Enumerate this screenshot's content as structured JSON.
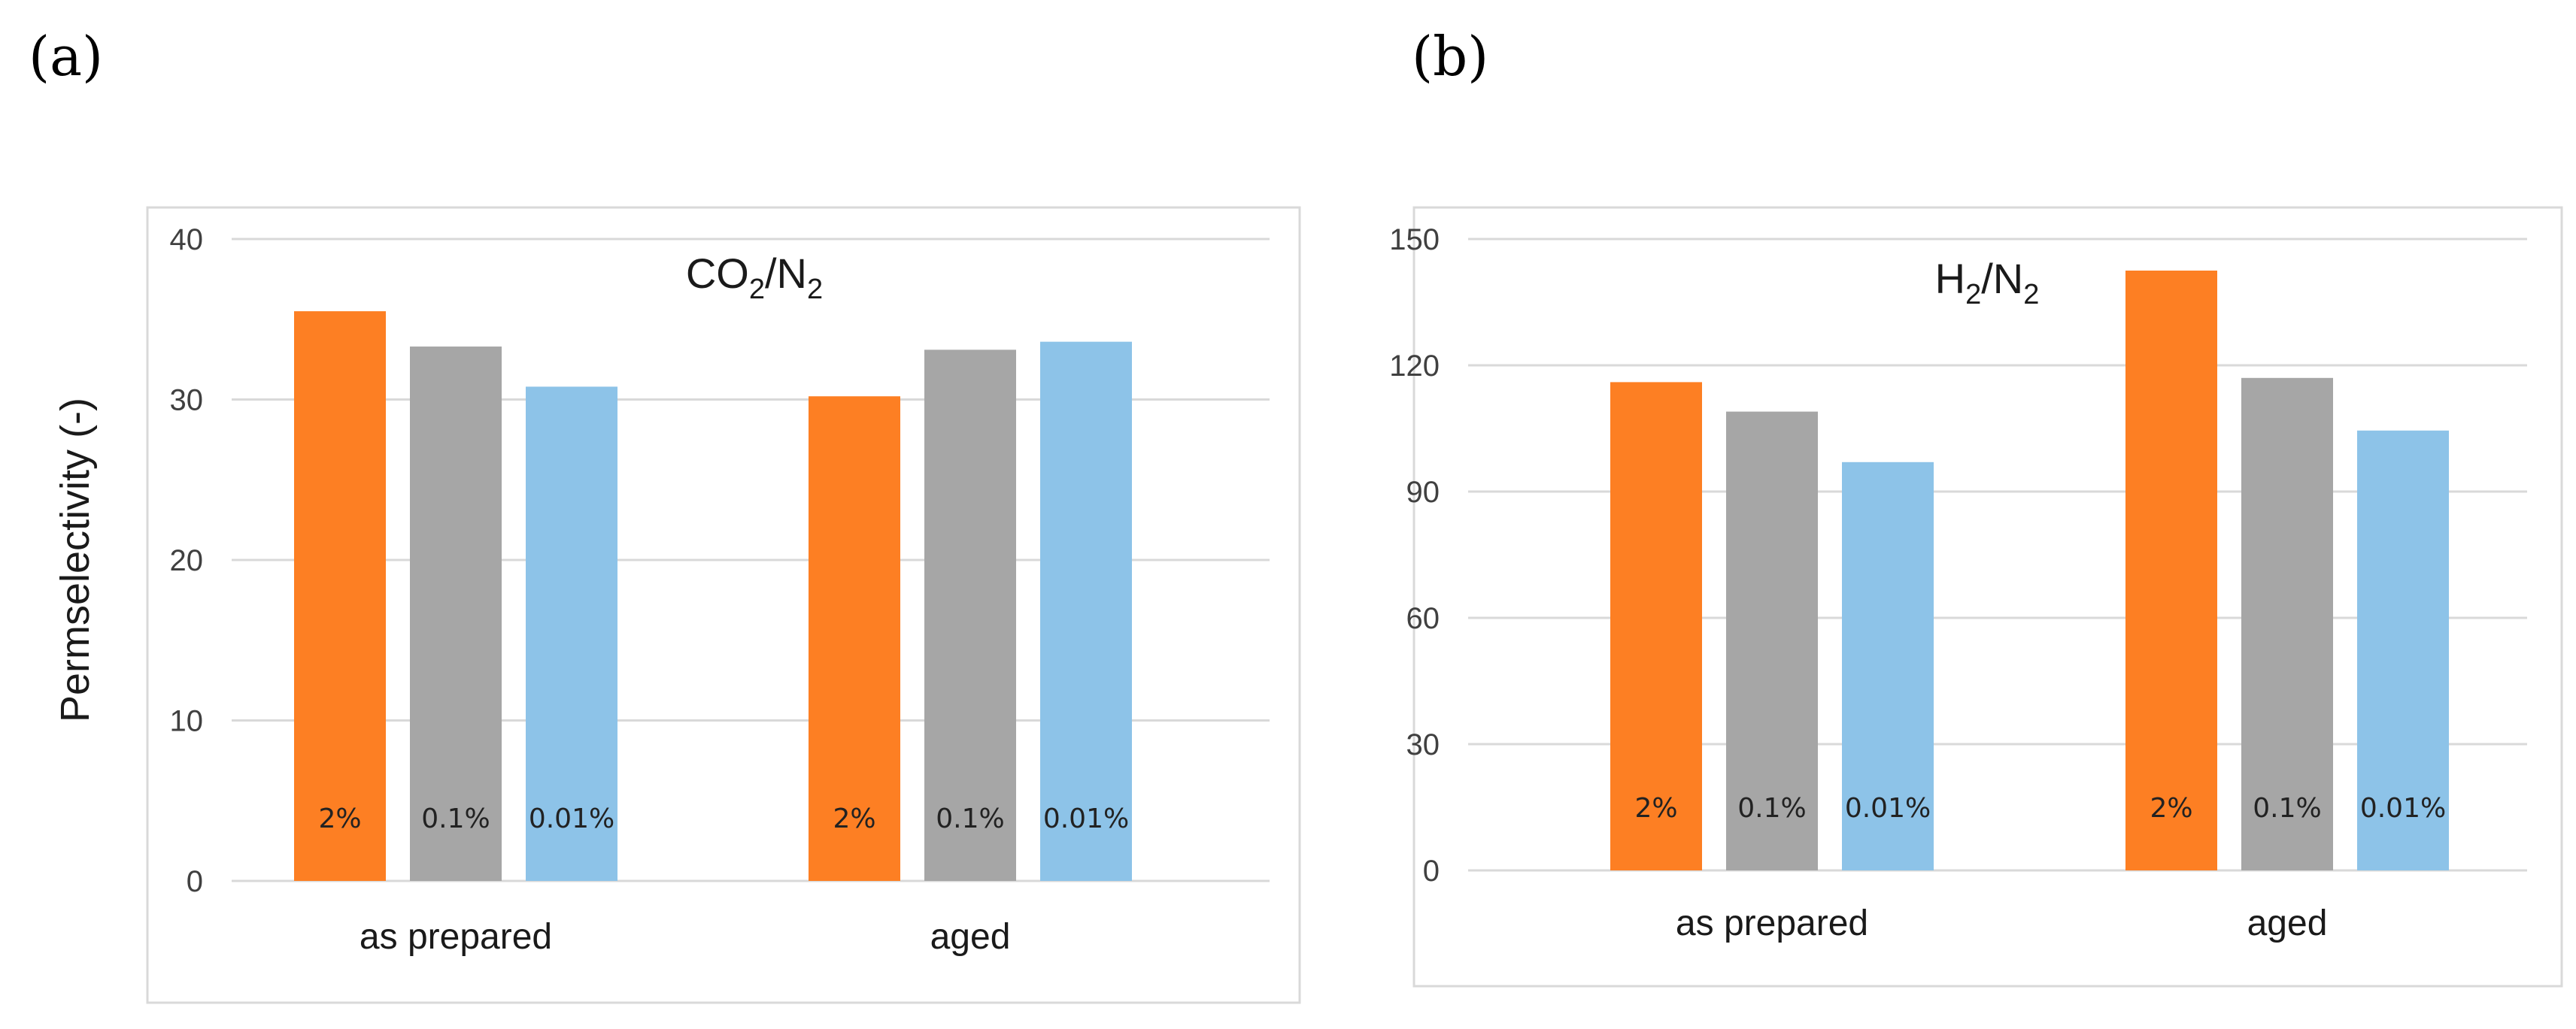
{
  "panel_labels": [
    "(a)",
    "(b)"
  ],
  "colors": {
    "series": [
      "#fd7f23",
      "#a6a6a6",
      "#8dc3e8"
    ],
    "grid": "#d9d9d9",
    "frame": "#d9d9d9"
  },
  "chart_data": [
    {
      "type": "bar",
      "title": {
        "base": "CO",
        "sub1": "2",
        "mid": "/N",
        "sub2": "2"
      },
      "ylabel": "Permselectivity  (-)",
      "xlabel": "",
      "categories": [
        "as prepared",
        "aged"
      ],
      "ylim": [
        0,
        40
      ],
      "yticks": [
        0,
        10,
        20,
        30,
        40
      ],
      "grid": true,
      "series": [
        {
          "name": "2%",
          "values": [
            35.5,
            30.2
          ]
        },
        {
          "name": "0.1%",
          "values": [
            33.3,
            33.1
          ]
        },
        {
          "name": "0.01%",
          "values": [
            30.8,
            33.6
          ]
        }
      ]
    },
    {
      "type": "bar",
      "title": {
        "base": "H",
        "sub1": "2",
        "mid": "/N",
        "sub2": "2"
      },
      "ylabel": "",
      "xlabel": "",
      "categories": [
        "as prepared",
        "aged"
      ],
      "ylim": [
        0,
        150
      ],
      "yticks": [
        0,
        30,
        60,
        90,
        120,
        150
      ],
      "grid": true,
      "series": [
        {
          "name": "2%",
          "values": [
            116,
            142.5
          ]
        },
        {
          "name": "0.1%",
          "values": [
            109,
            117
          ]
        },
        {
          "name": "0.01%",
          "values": [
            97,
            104.5
          ]
        }
      ]
    }
  ]
}
